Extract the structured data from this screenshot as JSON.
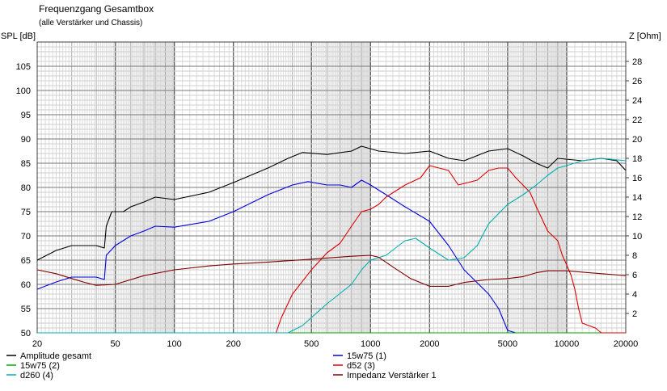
{
  "chart_data": {
    "type": "line",
    "title": "Frequenzgang Gesamtbox",
    "subtitle": "(alle Verstärker und Chassis)",
    "ylabel_left": "SPL [dB]",
    "ylabel_right": "Z [Ohm]",
    "x_scale": "log",
    "xlim": [
      20,
      20000
    ],
    "ylim_left": [
      50,
      110
    ],
    "ylim_right": [
      0,
      30
    ],
    "grid": true,
    "x_ticks": [
      "20",
      "50",
      "100",
      "200",
      "500",
      "1000",
      "2000",
      "5000",
      "10000",
      "20000"
    ],
    "y_ticks_left": [
      "50",
      "55",
      "60",
      "65",
      "70",
      "75",
      "80",
      "85",
      "90",
      "95",
      "100",
      "105"
    ],
    "y_ticks_right": [
      "2",
      "4",
      "6",
      "8",
      "10",
      "12",
      "14",
      "16",
      "18",
      "20",
      "22",
      "24",
      "26",
      "28"
    ],
    "legend_position": "bottom",
    "series": [
      {
        "name": "Amplitude gesamt",
        "color": "#000000",
        "axis": "left",
        "points": [
          [
            20,
            65
          ],
          [
            25,
            67
          ],
          [
            30,
            68
          ],
          [
            40,
            68
          ],
          [
            44,
            67.5
          ],
          [
            45,
            72
          ],
          [
            48,
            75
          ],
          [
            55,
            75
          ],
          [
            60,
            76
          ],
          [
            70,
            77
          ],
          [
            80,
            78
          ],
          [
            100,
            77.5
          ],
          [
            150,
            79
          ],
          [
            200,
            81
          ],
          [
            300,
            84
          ],
          [
            380,
            86
          ],
          [
            450,
            87.2
          ],
          [
            600,
            86.8
          ],
          [
            800,
            87.5
          ],
          [
            900,
            88.5
          ],
          [
            1100,
            87.5
          ],
          [
            1500,
            87
          ],
          [
            2000,
            87.5
          ],
          [
            2500,
            86
          ],
          [
            3000,
            85.5
          ],
          [
            4000,
            87.5
          ],
          [
            5000,
            88
          ],
          [
            6000,
            86.5
          ],
          [
            7000,
            85
          ],
          [
            8000,
            84
          ],
          [
            9000,
            86
          ],
          [
            12000,
            85.5
          ],
          [
            15000,
            86
          ],
          [
            18000,
            85.5
          ],
          [
            20000,
            83.5
          ]
        ]
      },
      {
        "name": "15w75 (1)",
        "color": "#0000dd",
        "axis": "left",
        "points": [
          [
            20,
            59
          ],
          [
            25,
            60.5
          ],
          [
            30,
            61.5
          ],
          [
            40,
            61.5
          ],
          [
            44,
            61
          ],
          [
            45,
            66
          ],
          [
            50,
            68
          ],
          [
            60,
            70
          ],
          [
            70,
            71
          ],
          [
            80,
            72
          ],
          [
            100,
            71.8
          ],
          [
            150,
            73
          ],
          [
            200,
            75
          ],
          [
            300,
            78.5
          ],
          [
            400,
            80.5
          ],
          [
            480,
            81.2
          ],
          [
            600,
            80.5
          ],
          [
            700,
            80.5
          ],
          [
            800,
            80
          ],
          [
            900,
            81.5
          ],
          [
            1000,
            80.5
          ],
          [
            1200,
            78.5
          ],
          [
            1500,
            76
          ],
          [
            2000,
            73
          ],
          [
            2500,
            68
          ],
          [
            3000,
            63
          ],
          [
            4000,
            58
          ],
          [
            4500,
            55
          ],
          [
            5000,
            50.5
          ],
          [
            5500,
            50
          ],
          [
            20000,
            50
          ]
        ]
      },
      {
        "name": "15w75 (2)",
        "color": "#00aa00",
        "axis": "left",
        "points": [
          [
            20,
            50
          ],
          [
            20000,
            50
          ]
        ]
      },
      {
        "name": "d52 (3)",
        "color": "#dd0000",
        "axis": "left",
        "points": [
          [
            20,
            50
          ],
          [
            330,
            50
          ],
          [
            350,
            53
          ],
          [
            400,
            58
          ],
          [
            500,
            63
          ],
          [
            600,
            66.5
          ],
          [
            700,
            68.5
          ],
          [
            800,
            72
          ],
          [
            900,
            75
          ],
          [
            1000,
            75.5
          ],
          [
            1100,
            76.5
          ],
          [
            1200,
            78
          ],
          [
            1500,
            80.5
          ],
          [
            1800,
            82
          ],
          [
            2000,
            84.5
          ],
          [
            2500,
            83.5
          ],
          [
            2800,
            80.5
          ],
          [
            3500,
            81.5
          ],
          [
            4000,
            83.5
          ],
          [
            4500,
            84
          ],
          [
            5000,
            84
          ],
          [
            5500,
            82
          ],
          [
            6500,
            79
          ],
          [
            7000,
            76
          ],
          [
            8000,
            71
          ],
          [
            9000,
            69
          ],
          [
            9500,
            66
          ],
          [
            10000,
            64
          ],
          [
            10500,
            62
          ],
          [
            11000,
            59
          ],
          [
            11500,
            55
          ],
          [
            12000,
            52
          ],
          [
            14000,
            51
          ],
          [
            15000,
            50
          ],
          [
            20000,
            50
          ]
        ]
      },
      {
        "name": "d260 (4)",
        "color": "#00b0b0",
        "axis": "left",
        "points": [
          [
            20,
            50
          ],
          [
            380,
            50
          ],
          [
            450,
            51.5
          ],
          [
            600,
            56
          ],
          [
            800,
            60
          ],
          [
            900,
            63
          ],
          [
            1000,
            65
          ],
          [
            1200,
            66
          ],
          [
            1500,
            69
          ],
          [
            1700,
            69.5
          ],
          [
            2000,
            67.5
          ],
          [
            2500,
            65
          ],
          [
            3000,
            65.5
          ],
          [
            3500,
            68
          ],
          [
            4000,
            72.5
          ],
          [
            5000,
            76.5
          ],
          [
            6000,
            78.5
          ],
          [
            7000,
            80.5
          ],
          [
            8000,
            82.5
          ],
          [
            9000,
            84
          ],
          [
            10000,
            84.5
          ],
          [
            12000,
            85.5
          ],
          [
            15000,
            86
          ],
          [
            20000,
            85.5
          ]
        ]
      },
      {
        "name": "Impedanz Verstärker 1",
        "color": "#800000",
        "axis": "right",
        "points": [
          [
            20,
            6.5
          ],
          [
            25,
            6.1
          ],
          [
            30,
            5.6
          ],
          [
            35,
            5.2
          ],
          [
            40,
            4.9
          ],
          [
            50,
            5
          ],
          [
            70,
            5.9
          ],
          [
            100,
            6.5
          ],
          [
            150,
            6.9
          ],
          [
            200,
            7.1
          ],
          [
            250,
            7.2
          ],
          [
            300,
            7.3
          ],
          [
            500,
            7.6
          ],
          [
            800,
            7.9
          ],
          [
            1000,
            8.0
          ],
          [
            1100,
            7.8
          ],
          [
            1300,
            6.8
          ],
          [
            1600,
            5.6
          ],
          [
            2000,
            4.8
          ],
          [
            2500,
            4.8
          ],
          [
            3000,
            5.2
          ],
          [
            4000,
            5.5
          ],
          [
            5000,
            5.6
          ],
          [
            6000,
            5.8
          ],
          [
            7000,
            6.2
          ],
          [
            8000,
            6.4
          ],
          [
            10000,
            6.4
          ],
          [
            13000,
            6.2
          ],
          [
            20000,
            5.9
          ]
        ]
      }
    ]
  }
}
